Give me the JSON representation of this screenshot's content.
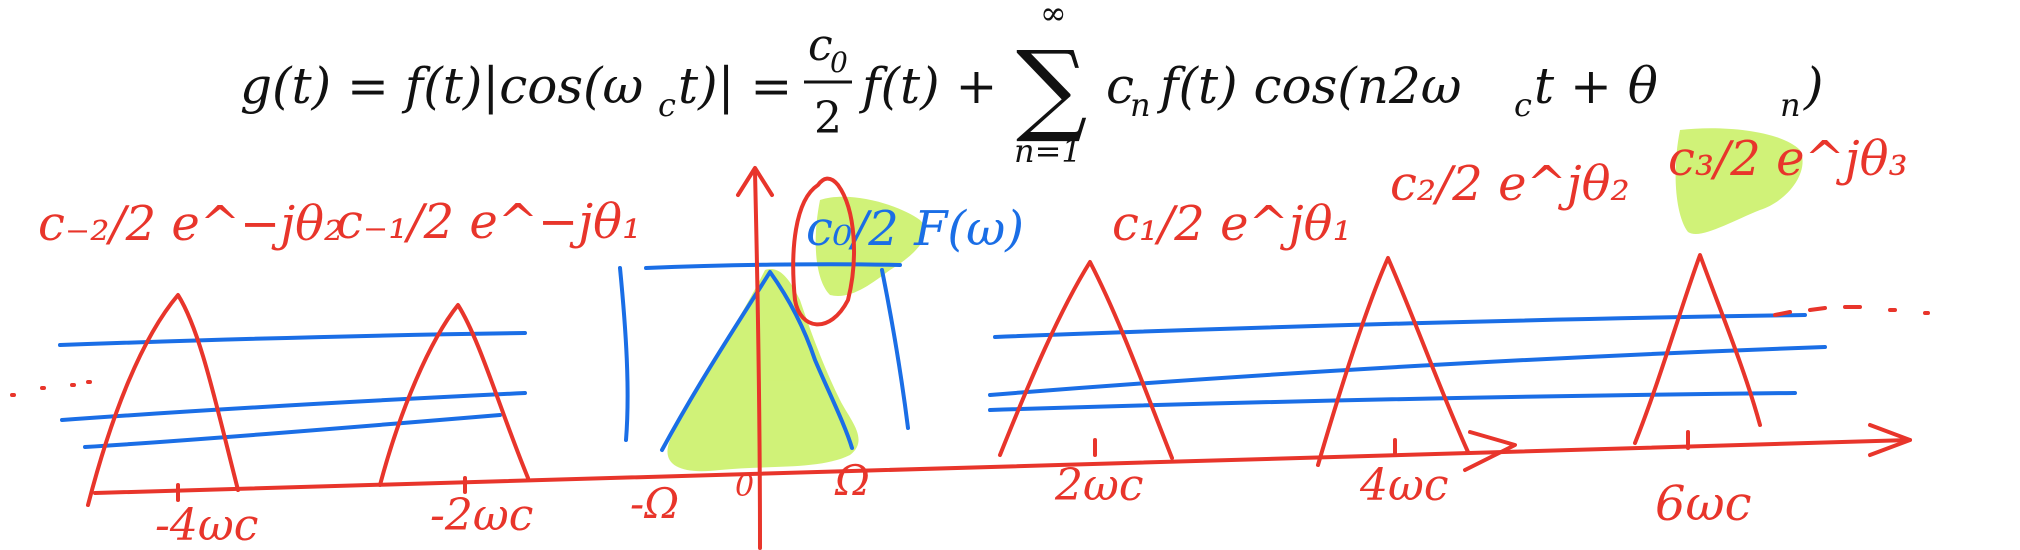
{
  "equation": {
    "lhs": "g(t) = f(t)|cos(ω",
    "lhs_sub": "c",
    "lhs_end": "t)| =",
    "frac_num": "c",
    "frac_num_sub": "0",
    "frac_den": "2",
    "term1": "f(t) +",
    "sum_symbol": "∑",
    "sum_upper": "∞",
    "sum_lower": "n=1",
    "term2": "c",
    "term2_sub": "n",
    "term2_rest": "f(t) cos(n2ω",
    "term2_sub2": "c",
    "term2_end": "t +  θ",
    "term2_sub3": "n",
    "term2_close": ")"
  },
  "annotations": {
    "coef_m2": "c₋₂/2 e^−jθ₂",
    "coef_m1": "c₋₁/2 e^−jθ₁",
    "coef_0": "c₀/2 F(ω)",
    "coef_1": "c₁/2 e^jθ₁",
    "coef_2": "c₂/2 e^jθ₂",
    "coef_3": "c₃/2 e^jθ₃"
  },
  "axis_labels": {
    "minus_4wc": "-4ωc",
    "minus_2wc": "-2ωc",
    "minus_omega": "-Ω",
    "zero": "0",
    "omega": "Ω",
    "wc2": "2ωc",
    "wc4": "4ωc",
    "wc6": "6ωc"
  },
  "colors": {
    "ink": "#111111",
    "red": "#e8352b",
    "blue": "#1a6ee6",
    "highlight": "#c8f060"
  }
}
